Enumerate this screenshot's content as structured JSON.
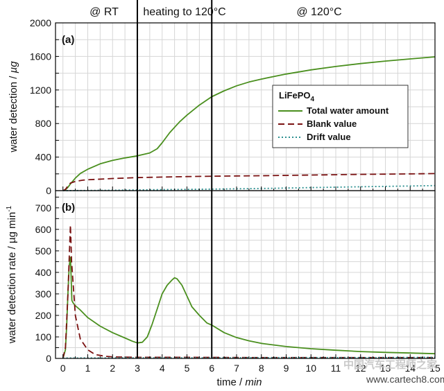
{
  "phases": {
    "rt": "@ RT",
    "heating": "heating to 120°C",
    "hold": "@ 120°C"
  },
  "xaxis": {
    "label_prefix": "time / ",
    "label_unit": "min",
    "range": [
      -0.3,
      15
    ],
    "ticks": [
      "0",
      "1",
      "2",
      "3",
      "4",
      "5",
      "6",
      "7",
      "8",
      "9",
      "10",
      "11",
      "12",
      "13",
      "14",
      "15"
    ]
  },
  "phase_boundaries": [
    3,
    6
  ],
  "chart_data": [
    {
      "type": "line",
      "panel_tag": "(a)",
      "ylabel_prefix": "water detection / ",
      "ylabel_unit": "µg",
      "ylim": [
        0,
        2000
      ],
      "yticks": [
        "0",
        "400",
        "800",
        "1200",
        "1600",
        "2000"
      ],
      "grid": true,
      "legend": {
        "placement": "right",
        "title_main": "LiFePO",
        "title_sub": "4"
      },
      "series": [
        {
          "name": "Total water amount",
          "style": "solid",
          "color": "#4a8f1e",
          "x": [
            0,
            0.1,
            0.2,
            0.3,
            0.5,
            0.7,
            1,
            1.5,
            2,
            2.5,
            3,
            3.5,
            3.8,
            4,
            4.3,
            4.7,
            5,
            5.5,
            6,
            6.5,
            7,
            7.5,
            8,
            9,
            10,
            11,
            12,
            13,
            14,
            15
          ],
          "y": [
            0,
            10,
            40,
            80,
            150,
            205,
            255,
            320,
            360,
            390,
            415,
            450,
            500,
            570,
            690,
            820,
            900,
            1020,
            1120,
            1190,
            1250,
            1295,
            1330,
            1390,
            1440,
            1480,
            1515,
            1545,
            1570,
            1595
          ]
        },
        {
          "name": "Blank value",
          "style": "dashed",
          "color": "#7a1111",
          "x": [
            0,
            0.1,
            0.2,
            0.3,
            0.5,
            0.8,
            1,
            2,
            3,
            4,
            5,
            6,
            7,
            8,
            9,
            10,
            11,
            12,
            13,
            14,
            15
          ],
          "y": [
            0,
            15,
            55,
            90,
            110,
            125,
            130,
            145,
            155,
            162,
            168,
            172,
            175,
            178,
            182,
            186,
            190,
            194,
            197,
            200,
            203
          ]
        },
        {
          "name": "Drift value",
          "style": "dotted",
          "color": "#2a8f8f",
          "x": [
            0,
            2,
            4,
            6,
            8,
            10,
            12,
            14,
            15
          ],
          "y": [
            0,
            5,
            12,
            18,
            26,
            36,
            46,
            55,
            60
          ]
        }
      ]
    },
    {
      "type": "line",
      "panel_tag": "(b)",
      "ylabel_prefix": "water detection rate / µg min",
      "ylabel_sup": "-1",
      "ylim": [
        0,
        780
      ],
      "yticks": [
        "0",
        "100",
        "200",
        "300",
        "400",
        "500",
        "600",
        "700"
      ],
      "grid": true,
      "series": [
        {
          "name": "Total water amount",
          "style": "solid",
          "color": "#4a8f1e",
          "x": [
            0,
            0.1,
            0.15,
            0.2,
            0.25,
            0.3,
            0.33,
            0.36,
            0.4,
            0.5,
            0.7,
            1,
            1.5,
            2,
            2.5,
            2.8,
            3,
            3.2,
            3.4,
            3.6,
            3.8,
            4,
            4.2,
            4.4,
            4.5,
            4.6,
            4.8,
            5,
            5.2,
            5.5,
            5.8,
            6,
            6.5,
            7,
            7.5,
            8,
            9,
            10,
            11,
            12,
            13,
            14,
            15
          ],
          "y": [
            0,
            40,
            150,
            300,
            430,
            470,
            380,
            270,
            260,
            245,
            225,
            190,
            150,
            120,
            95,
            80,
            72,
            75,
            100,
            160,
            230,
            300,
            340,
            365,
            375,
            370,
            340,
            290,
            240,
            200,
            165,
            155,
            120,
            97,
            82,
            70,
            55,
            45,
            38,
            32,
            28,
            25,
            22
          ]
        },
        {
          "name": "Blank value",
          "style": "dashed",
          "color": "#7a1111",
          "x": [
            0,
            0.1,
            0.2,
            0.3,
            0.35,
            0.5,
            0.7,
            1,
            1.3,
            1.7,
            2,
            3,
            5,
            8,
            11,
            15
          ],
          "y": [
            0,
            50,
            300,
            620,
            450,
            200,
            90,
            40,
            18,
            10,
            7,
            5,
            5,
            4,
            4,
            4
          ]
        },
        {
          "name": "Drift value",
          "style": "dotted",
          "color": "#2a8f8f",
          "x": [
            0,
            3,
            6,
            9,
            12,
            15
          ],
          "y": [
            2,
            3,
            3,
            4,
            4,
            5
          ]
        }
      ]
    }
  ],
  "watermark": {
    "cn": "中国汽车工程师之家",
    "url": "www.cartech8.com"
  }
}
